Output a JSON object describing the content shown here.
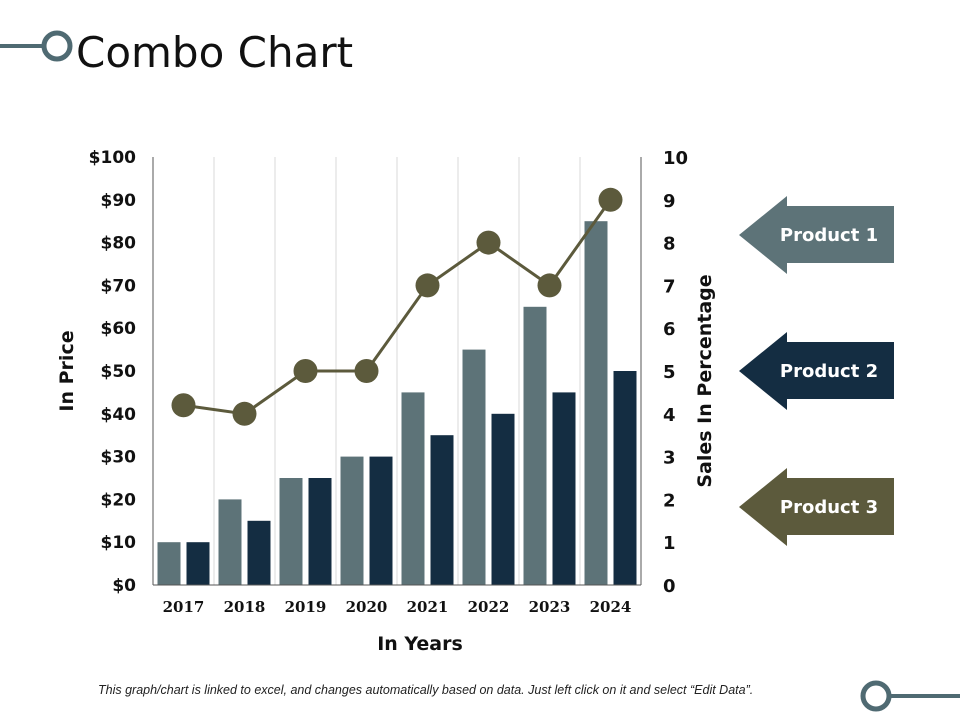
{
  "slide": {
    "title": "Combo Chart",
    "footnote": "This graph/chart is linked to excel, and changes automatically based on data.  Just left click on it and select “Edit Data”."
  },
  "colors": {
    "bar_series_a": "#5d7378",
    "bar_series_b": "#142d42",
    "line": "#5c5a3c",
    "deco": "#4f6a72"
  },
  "legend": [
    {
      "label": "Product 1",
      "color": "#5d7378"
    },
    {
      "label": "Product 2",
      "color": "#142d42"
    },
    {
      "label": "Product 3",
      "color": "#5c5a3c"
    }
  ],
  "chart_data": {
    "type": "combo",
    "categories": [
      "2017",
      "2018",
      "2019",
      "2020",
      "2021",
      "2022",
      "2023",
      "2024"
    ],
    "series": [
      {
        "name": "Product 1",
        "kind": "bar",
        "axis": "left",
        "values": [
          10,
          20,
          25,
          30,
          45,
          55,
          65,
          85
        ]
      },
      {
        "name": "Product 2",
        "kind": "bar",
        "axis": "left",
        "values": [
          10,
          15,
          25,
          30,
          35,
          40,
          45,
          50
        ]
      },
      {
        "name": "Product 3",
        "kind": "line",
        "axis": "right",
        "values": [
          4.2,
          4,
          5,
          5,
          7,
          8,
          7,
          9
        ]
      }
    ],
    "xlabel": "In Years",
    "ylabel": "In Price",
    "y2label": "Sales In Percentage",
    "ylim": [
      0,
      100
    ],
    "y2lim": [
      0,
      10
    ],
    "yticks": [
      "$0",
      "$10",
      "$20",
      "$30",
      "$40",
      "$50",
      "$60",
      "$70",
      "$80",
      "$90",
      "$100"
    ],
    "y2ticks": [
      "0",
      "1",
      "2",
      "3",
      "4",
      "5",
      "6",
      "7",
      "8",
      "9",
      "10"
    ],
    "grid": "vertical"
  }
}
